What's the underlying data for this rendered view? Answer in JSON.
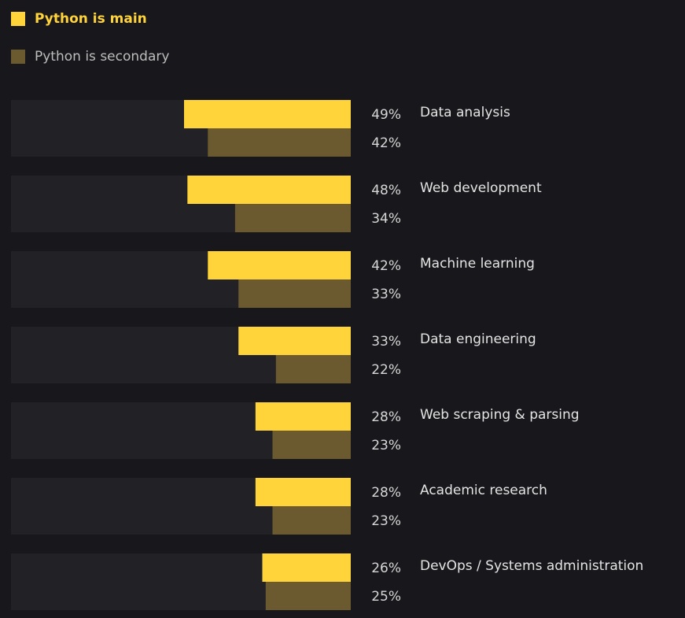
{
  "chart_data": {
    "type": "bar",
    "orientation": "horizontal",
    "bar_direction": "right-to-left",
    "categories": [
      "Data analysis",
      "Web development",
      "Machine learning",
      "Data engineering",
      "Web scraping & parsing",
      "Academic research",
      "DevOps / Systems administration"
    ],
    "series": [
      {
        "name": "Python is main",
        "values": [
          49,
          48,
          42,
          33,
          28,
          28,
          26
        ],
        "color": "#ffd43b"
      },
      {
        "name": "Python is secondary",
        "values": [
          42,
          34,
          33,
          22,
          23,
          23,
          25
        ],
        "color": "#6b5a2f"
      }
    ],
    "value_labels": [
      [
        "49%",
        "48%",
        "42%",
        "33%",
        "28%",
        "28%",
        "26%"
      ],
      [
        "42%",
        "34%",
        "33%",
        "22%",
        "23%",
        "23%",
        "25%"
      ]
    ],
    "xlim": [
      0,
      100
    ],
    "legend_position": "top-left",
    "grid": false,
    "title": "",
    "xlabel": "",
    "ylabel": ""
  },
  "colors": {
    "background": "#18171b",
    "track": "#222126",
    "main": "#ffd43b",
    "secondary": "#6b5a2f",
    "value_text": "#d6d6d6",
    "category_text": "#e4e4e4",
    "legend_main_text": "#ffd43b",
    "legend_secondary_text": "#bdbdbd"
  }
}
